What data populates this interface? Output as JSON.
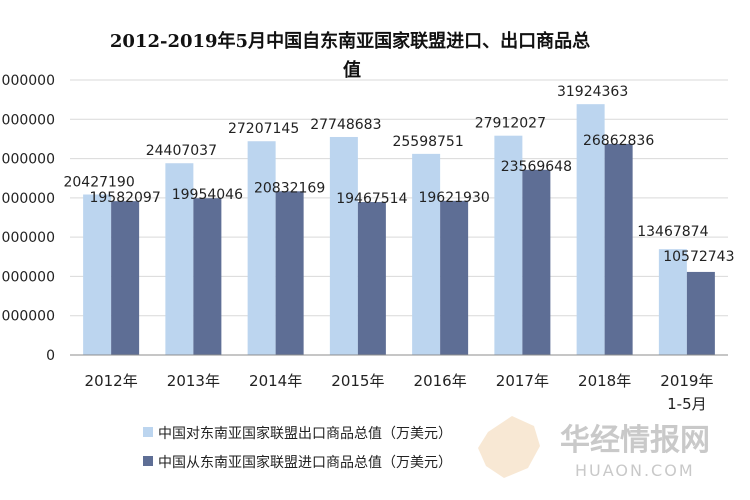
{
  "chart_data": {
    "type": "bar",
    "title_line1": "2012-2019年5月中国自东南亚国家联盟进口、出口商品总",
    "title_line2": "值",
    "categories": [
      "2012年",
      "2013年",
      "2014年",
      "2015年",
      "2016年",
      "2017年",
      "2018年",
      "2019年"
    ],
    "category_sublabels": [
      "",
      "",
      "",
      "",
      "",
      "",
      "",
      "1-5月"
    ],
    "y_tick_labels": [
      "0",
      "000000",
      "000000",
      "000000",
      "000000",
      "000000",
      "000000",
      "000000"
    ],
    "ylim": [
      0,
      35000000
    ],
    "y_tick_step": 5000000,
    "grid": true,
    "legend_position": "bottom",
    "series": [
      {
        "name": "中国对东南亚国家联盟出口商品总值（万美元）",
        "color": "#bcd5ef",
        "values": [
          20427190,
          24407037,
          27207145,
          27748683,
          25598751,
          27912027,
          31924363,
          13467874
        ]
      },
      {
        "name": "中国从东南亚国家联盟进口商品总值（万美元）",
        "color": "#5e6e95",
        "values": [
          19582097,
          19954046,
          20832169,
          19467514,
          19621930,
          23569648,
          26862836,
          10572743
        ]
      }
    ]
  },
  "watermark": {
    "text_cn": "华经情报网",
    "text_en": "HUAON.COM"
  }
}
